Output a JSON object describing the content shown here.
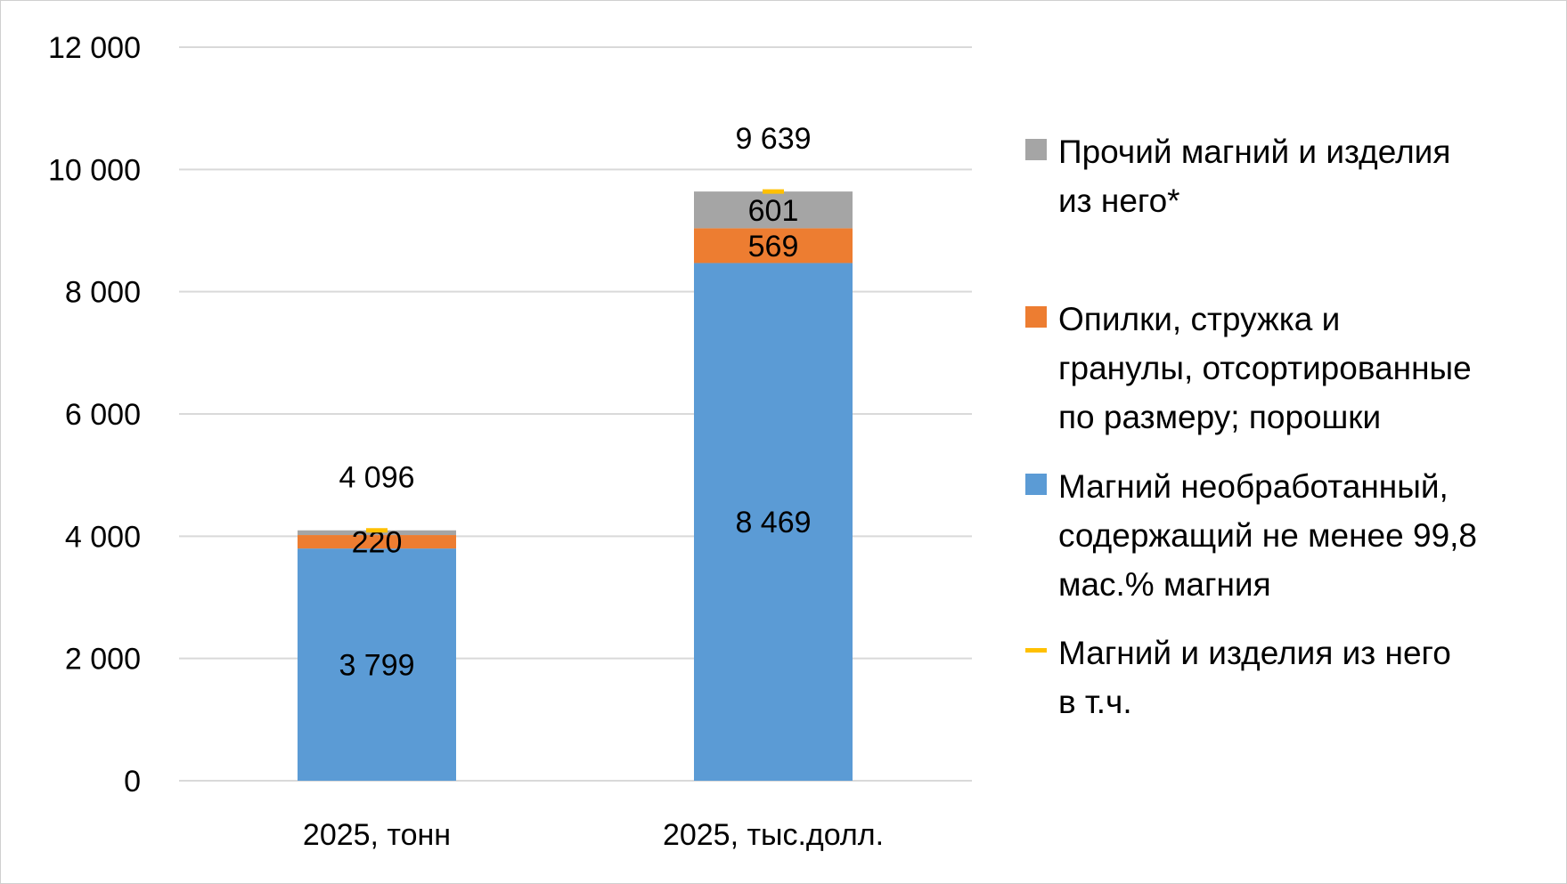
{
  "chart_data": {
    "type": "bar",
    "stacked": true,
    "categories": [
      "2025, тонн",
      "2025, тыс.долл."
    ],
    "ylim": [
      0,
      12000
    ],
    "yticks": [
      0,
      2000,
      4000,
      6000,
      8000,
      10000,
      12000
    ],
    "ytick_labels": [
      "0",
      "2 000",
      "4 000",
      "6 000",
      "8 000",
      "10 000",
      "12 000"
    ],
    "grid": true,
    "legend_position": "right",
    "series": [
      {
        "name": "Магний необработанный, содержащий не менее 99,8 мас.% магния",
        "color": "#5B9BD5",
        "values": [
          3799,
          8469
        ],
        "labels": [
          "3 799",
          "8 469"
        ]
      },
      {
        "name": "Опилки, стружка и гранулы, отсортированные по размеру; порошки",
        "color": "#ED7D31",
        "values": [
          220,
          569
        ],
        "labels": [
          "220",
          "569"
        ]
      },
      {
        "name": "Прочий магний и изделия из него*",
        "color": "#A5A5A5",
        "values": [
          77,
          601
        ],
        "labels": [
          "",
          "601"
        ]
      }
    ],
    "total_series": {
      "name": "Магний и изделия из него в т.ч.",
      "color": "#FFC000",
      "values": [
        4096,
        9639
      ],
      "labels": [
        "4 096",
        "9 639"
      ]
    }
  },
  "legend": [
    {
      "key": "other",
      "color": "#A5A5A5",
      "marker": "square",
      "lines": [
        "Прочий магний и изделия",
        "из него*"
      ]
    },
    {
      "key": "powders",
      "color": "#ED7D31",
      "marker": "square",
      "lines": [
        "Опилки, стружка и",
        "гранулы, отсортированные",
        "по размеру; порошки"
      ]
    },
    {
      "key": "raw",
      "color": "#5B9BD5",
      "marker": "square",
      "lines": [
        "Магний необработанный,",
        "содержащий не менее 99,8",
        "мас.% магния"
      ]
    },
    {
      "key": "total",
      "color": "#FFC000",
      "marker": "line",
      "lines": [
        "Магний и изделия из него",
        "в т.ч."
      ]
    }
  ]
}
